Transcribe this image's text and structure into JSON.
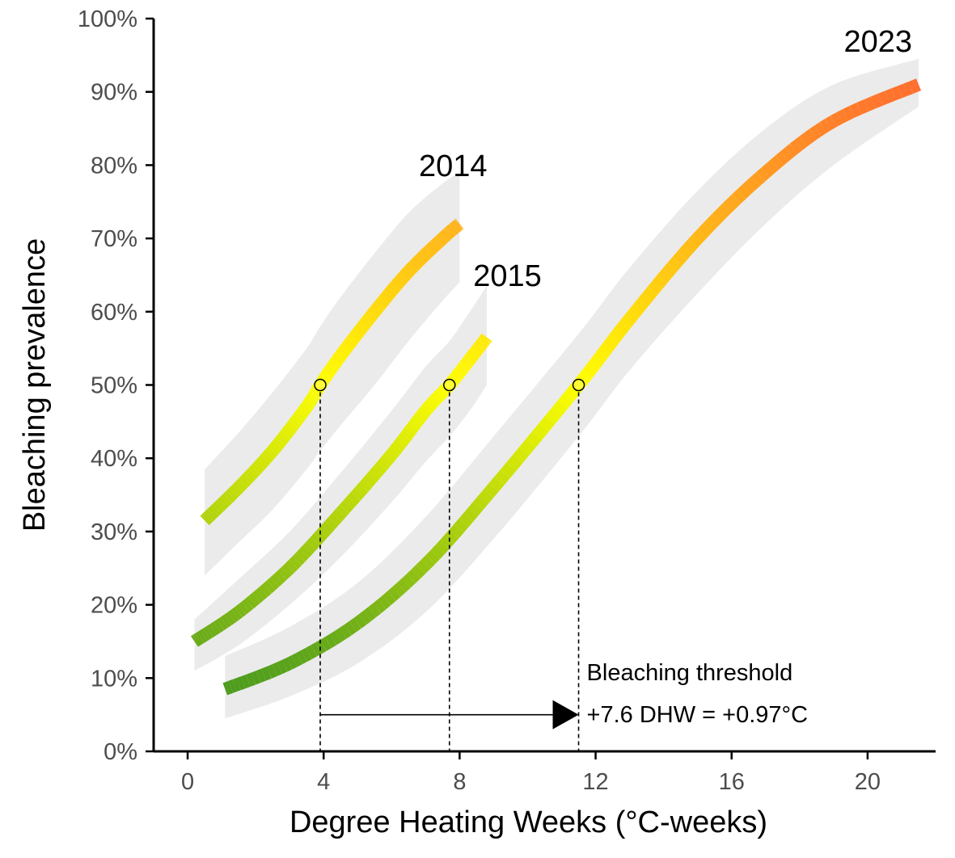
{
  "chart_data": {
    "type": "line",
    "xlabel": "Degree Heating Weeks (°C-weeks)",
    "ylabel": "Bleaching prevalence",
    "xlim": [
      -1.0,
      22.0
    ],
    "ylim": [
      0,
      100
    ],
    "x_ticks": [
      0,
      4,
      8,
      12,
      16,
      20
    ],
    "x_tick_labels": [
      "0",
      "4",
      "8",
      "12",
      "16",
      "20"
    ],
    "y_ticks": [
      0,
      10,
      20,
      30,
      40,
      50,
      60,
      70,
      80,
      90,
      100
    ],
    "y_tick_labels": [
      "0%",
      "10%",
      "20%",
      "30%",
      "40%",
      "50%",
      "60%",
      "70%",
      "80%",
      "90%",
      "100%"
    ],
    "grid": false,
    "legend": "none",
    "color_scale": {
      "low": "#4a9a1e",
      "mid": "#ffff00",
      "high": "#ff6b30"
    },
    "ribbon_color": "#ebebeb",
    "series": [
      {
        "name": "2014",
        "x": [
          0.5,
          1.5,
          2.5,
          3.5,
          3.9,
          4.5,
          5.5,
          6.5,
          7.5,
          8.0
        ],
        "y": [
          31.5,
          36.0,
          41.0,
          47.0,
          50.0,
          54.0,
          60.0,
          65.5,
          70.0,
          72.0
        ],
        "lower": [
          24.0,
          28.5,
          33.0,
          38.5,
          41.0,
          44.5,
          50.0,
          56.0,
          61.5,
          64.0
        ],
        "upper": [
          38.5,
          43.5,
          49.0,
          55.0,
          58.0,
          62.0,
          68.0,
          73.5,
          77.5,
          79.0
        ]
      },
      {
        "name": "2015",
        "x": [
          0.2,
          1.5,
          3.0,
          4.5,
          6.0,
          7.0,
          7.7,
          8.3,
          8.8
        ],
        "y": [
          15.0,
          19.0,
          25.0,
          32.5,
          40.5,
          46.5,
          50.0,
          53.5,
          56.5
        ],
        "lower": [
          11.0,
          14.5,
          20.0,
          26.5,
          34.0,
          39.5,
          43.0,
          46.5,
          50.0
        ],
        "upper": [
          18.0,
          23.5,
          30.0,
          38.0,
          46.5,
          52.5,
          56.0,
          60.0,
          63.5
        ]
      },
      {
        "name": "2023",
        "x": [
          1.1,
          3.0,
          5.0,
          7.0,
          9.0,
          11.5,
          13.0,
          15.0,
          17.0,
          19.0,
          21.5
        ],
        "y": [
          8.5,
          12.0,
          17.5,
          25.5,
          36.0,
          50.0,
          59.0,
          70.0,
          79.0,
          86.0,
          91.0
        ],
        "lower": [
          4.5,
          7.5,
          12.0,
          19.0,
          29.0,
          43.0,
          52.0,
          62.5,
          72.0,
          80.0,
          88.0
        ],
        "upper": [
          13.0,
          17.0,
          23.0,
          32.0,
          43.0,
          57.0,
          66.0,
          76.5,
          85.0,
          91.0,
          94.5
        ]
      }
    ],
    "threshold_points": [
      {
        "series": "2014",
        "x": 3.9,
        "y": 50
      },
      {
        "series": "2015",
        "x": 7.7,
        "y": 50
      },
      {
        "series": "2023",
        "x": 11.5,
        "y": 50
      }
    ],
    "arrow": {
      "x_from": 3.9,
      "x_to": 11.5,
      "y": 5
    },
    "annotations": {
      "line1": "Bleaching threshold",
      "line2": "+7.6 DHW = +0.97°C"
    }
  }
}
